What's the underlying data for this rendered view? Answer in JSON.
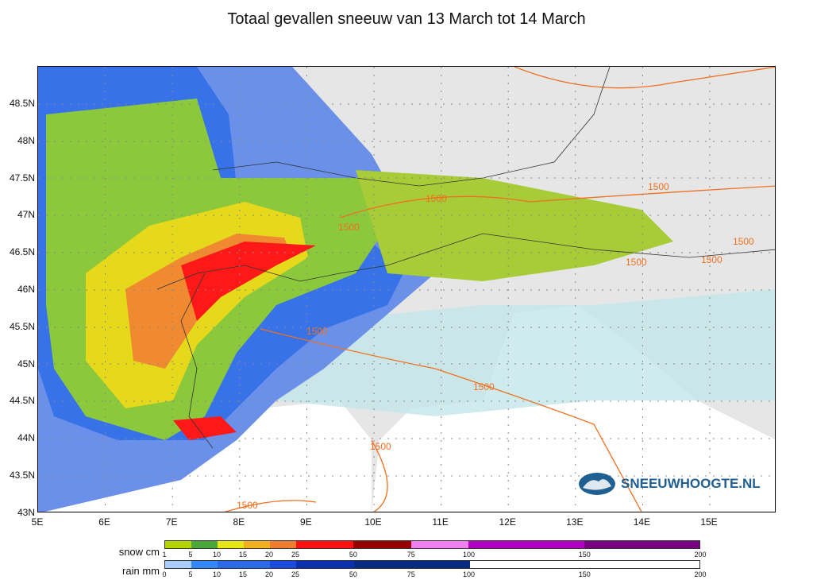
{
  "title": "Totaal gevallen sneeuw van 13 March tot 14 March",
  "map": {
    "lat_labels": [
      "48.5N",
      "48N",
      "47.5N",
      "47N",
      "46.5N",
      "46N",
      "45.5N",
      "45N",
      "44.5N",
      "44N",
      "43.5N",
      "43N"
    ],
    "lon_labels": [
      "5E",
      "6E",
      "7E",
      "8E",
      "9E",
      "10E",
      "11E",
      "12E",
      "13E",
      "14E",
      "15E"
    ],
    "contour_label": "1500",
    "colors": {
      "land": "#e6e6e6",
      "sea": "#ffffff",
      "contour": "#f07020",
      "border": "#333333"
    }
  },
  "logo": {
    "text": "SNEEUWHOOGTE.NL"
  },
  "legend": {
    "snow": {
      "label": "snow cm",
      "ticks": [
        "1",
        "5",
        "10",
        "15",
        "20",
        "25",
        "50",
        "75",
        "100",
        "150",
        "200"
      ],
      "colors": [
        "#b5d400",
        "#4aa83a",
        "#e6e617",
        "#f0b020",
        "#f07c30",
        "#ff1010",
        "#960000",
        "#f080f0",
        "#b000c0",
        "#780080"
      ]
    },
    "rain": {
      "label": "rain mm",
      "ticks": [
        "0",
        "5",
        "10",
        "15",
        "20",
        "25",
        "50",
        "75",
        "100",
        "150",
        "200"
      ],
      "colors": [
        "#aaccff",
        "#3388ff",
        "#2a6ae8",
        "#1a4ae0",
        "#0a30b0",
        "#082a80"
      ]
    }
  }
}
